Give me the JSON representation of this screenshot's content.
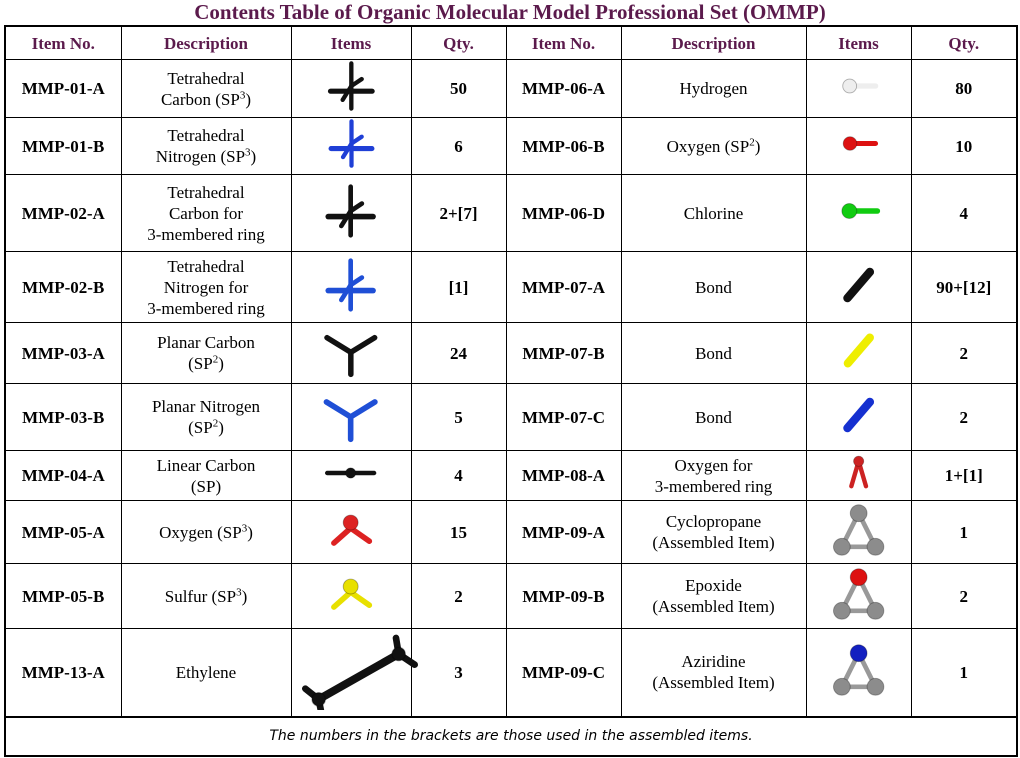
{
  "title": "Contents Table of Organic Molecular Model Professional Set (OMMP)",
  "table": {
    "headers": [
      "Item No.",
      "Description",
      "Items",
      "Qty.",
      "Item No.",
      "Description",
      "Items",
      "Qty."
    ],
    "rows": [
      [
        {
          "item": "MMP-01-A",
          "description": [
            "Tetrahedral",
            {
              "text": "Carbon (SP",
              "sup": "3",
              "after": ")"
            }
          ],
          "qty": "50"
        },
        {
          "item": "MMP-06-A",
          "description": [
            "Hydrogen"
          ],
          "qty": "80"
        }
      ],
      [
        {
          "item": "MMP-01-B",
          "description": [
            "Tetrahedral",
            {
              "text": "Nitrogen (SP",
              "sup": "3",
              "after": ")"
            }
          ],
          "qty": "6"
        },
        {
          "item": "MMP-06-B",
          "description": [
            {
              "text": "Oxygen (SP",
              "sup": "2",
              "after": ")"
            }
          ],
          "qty": "10"
        }
      ],
      [
        {
          "item": "MMP-02-A",
          "description": [
            "Tetrahedral",
            "Carbon for",
            "3-membered ring"
          ],
          "qty": "2+[7]"
        },
        {
          "item": "MMP-06-D",
          "description": [
            "Chlorine"
          ],
          "qty": "4"
        }
      ],
      [
        {
          "item": "MMP-02-B",
          "description": [
            "Tetrahedral",
            "Nitrogen for",
            "3-membered ring"
          ],
          "qty": "[1]"
        },
        {
          "item": "MMP-07-A",
          "description": [
            "Bond"
          ],
          "qty": "90+[12]"
        }
      ],
      [
        {
          "item": "MMP-03-A",
          "description": [
            "Planar Carbon",
            {
              "text": "(SP",
              "sup": "2",
              "after": ")"
            }
          ],
          "qty": "24"
        },
        {
          "item": "MMP-07-B",
          "description": [
            "Bond"
          ],
          "qty": "2"
        }
      ],
      [
        {
          "item": "MMP-03-B",
          "description": [
            "Planar Nitrogen",
            {
              "text": "(SP",
              "sup": "2",
              "after": ")"
            }
          ],
          "qty": "5"
        },
        {
          "item": "MMP-07-C",
          "description": [
            "Bond"
          ],
          "qty": "2"
        }
      ],
      [
        {
          "item": "MMP-04-A",
          "description": [
            "Linear Carbon",
            "(SP)"
          ],
          "qty": "4"
        },
        {
          "item": "MMP-08-A",
          "description": [
            "Oxygen for",
            "3-membered ring"
          ],
          "qty": "1+[1]"
        }
      ],
      [
        {
          "item": "MMP-05-A",
          "description": [
            {
              "text": "Oxygen (SP",
              "sup": "3",
              "after": ")"
            }
          ],
          "qty": "15"
        },
        {
          "item": "MMP-09-A",
          "description": [
            "Cyclopropane",
            "(Assembled Item)"
          ],
          "qty": "1"
        }
      ],
      [
        {
          "item": "MMP-05-B",
          "description": [
            {
              "text": "Sulfur (SP",
              "sup": "3",
              "after": ")"
            }
          ],
          "qty": "2"
        },
        {
          "item": "MMP-09-B",
          "description": [
            "Epoxide",
            "(Assembled Item)"
          ],
          "qty": "2"
        }
      ],
      [
        {
          "item": "MMP-13-A",
          "description": [
            "Ethylene"
          ],
          "qty": "3"
        },
        {
          "item": "MMP-09-C",
          "description": [
            "Aziridine",
            "(Assembled Item)"
          ],
          "qty": "1"
        }
      ]
    ],
    "footnote": "The numbers in the brackets are those used in the assembled items."
  }
}
